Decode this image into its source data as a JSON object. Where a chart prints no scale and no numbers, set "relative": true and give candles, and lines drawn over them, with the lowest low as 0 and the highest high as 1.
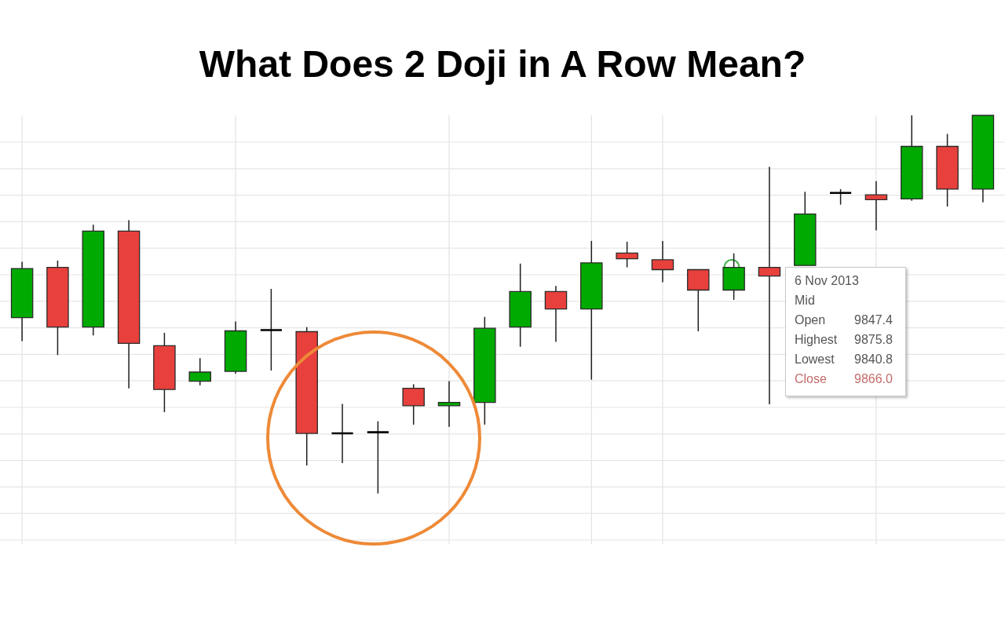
{
  "chart_data": {
    "type": "candlestick",
    "title": "What Does 2 Doji in A Row Mean?",
    "relative": true,
    "grid": true,
    "categories": [
      null,
      null,
      null,
      null,
      null,
      null,
      null,
      null,
      null,
      null,
      null,
      null,
      null,
      null,
      null,
      null,
      null,
      null,
      null,
      null,
      null,
      null,
      null,
      null,
      null,
      null,
      null,
      null
    ],
    "ohlc": [
      [
        0.465,
        0.613,
        0.403,
        0.595
      ],
      [
        0.598,
        0.616,
        0.366,
        0.44
      ],
      [
        0.44,
        0.711,
        0.418,
        0.694
      ],
      [
        0.694,
        0.723,
        0.278,
        0.397
      ],
      [
        0.391,
        0.425,
        0.215,
        0.275
      ],
      [
        0.297,
        0.358,
        0.286,
        0.321
      ],
      [
        0.323,
        0.455,
        0.317,
        0.43
      ],
      [
        0.432,
        0.541,
        0.325,
        0.432
      ],
      [
        0.428,
        0.44,
        0.074,
        0.159
      ],
      [
        0.159,
        0.237,
        0.08,
        0.159
      ],
      [
        0.162,
        0.191,
        0,
        0.162
      ],
      [
        0.278,
        0.289,
        0.182,
        0.232
      ],
      [
        0.232,
        0.297,
        0.176,
        0.241
      ],
      [
        0.241,
        0.467,
        0.182,
        0.437
      ],
      [
        0.44,
        0.608,
        0.388,
        0.534
      ],
      [
        0.534,
        0.549,
        0.401,
        0.488
      ],
      [
        0.488,
        0.668,
        0.301,
        0.61
      ],
      [
        0.636,
        0.666,
        0.598,
        0.621
      ],
      [
        0.618,
        0.668,
        0.559,
        0.592
      ],
      [
        0.592,
        0.593,
        0.429,
        0.538
      ],
      [
        0.538,
        0.635,
        0.512,
        0.598
      ],
      [
        0.598,
        0.864,
        0.236,
        0.575
      ],
      [
        0.603,
        0.798,
        0.603,
        0.739
      ],
      [
        0.795,
        0.805,
        0.764,
        0.795
      ],
      [
        0.79,
        0.826,
        0.696,
        0.777
      ],
      [
        0.779,
        1,
        0.774,
        0.918
      ],
      [
        0.918,
        0.951,
        0.759,
        0.805
      ],
      [
        0.805,
        1,
        0.77,
        1
      ]
    ],
    "colors": [
      "#00aa00",
      "#e8403c",
      "#00aa00",
      "#e8403c",
      "#e8403c",
      "#00aa00",
      "#00aa00",
      "#000000",
      "#e8403c",
      "#000000",
      "#000000",
      "#e8403c",
      "#00aa00",
      "#00aa00",
      "#00aa00",
      "#e8403c",
      "#00aa00",
      "#e8403c",
      "#e8403c",
      "#e8403c",
      "#00aa00",
      "#e8403c",
      "#00aa00",
      "#000000",
      "#e8403c",
      "#00aa00",
      "#e8403c",
      "#00aa00"
    ],
    "annotations": [
      "6 Nov 2013",
      "Mid",
      "Open 9847.4",
      "Highest 9875.8",
      "Lowest 9840.8",
      "Close 9866.0"
    ]
  }
}
